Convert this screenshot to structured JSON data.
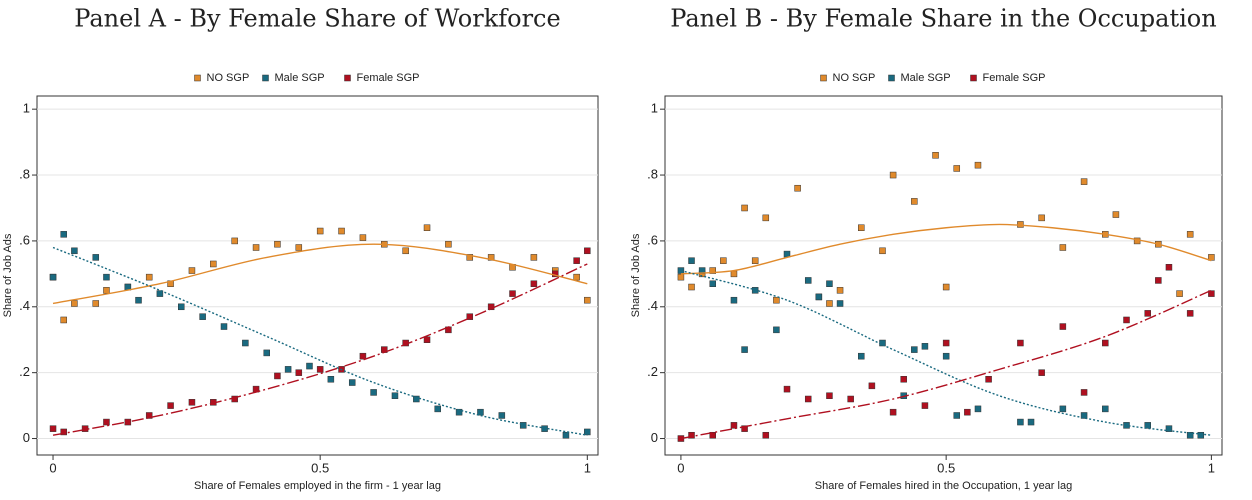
{
  "chart_data": [
    {
      "type": "scatter",
      "title": "Panel A - By Female Share of Workforce",
      "x_label": "Share of Females employed in the firm - 1 year lag",
      "y_label": "Share of Job Ads",
      "xlim": [
        -0.03,
        1.02
      ],
      "ylim": [
        -0.05,
        1.04
      ],
      "xticks": [
        0,
        0.5,
        1
      ],
      "yticks": [
        0,
        {
          "value": 0.2,
          "label": ".2"
        },
        {
          "value": 0.4,
          "label": ".4"
        },
        {
          "value": 0.6,
          "label": ".6"
        },
        {
          "value": 0.8,
          "label": ".8"
        },
        1
      ],
      "grid": true,
      "legend": "top",
      "series": [
        {
          "name": "NO SGP",
          "color": "#e08a2c",
          "x": [
            0,
            0.02,
            0.04,
            0.08,
            0.1,
            0.14,
            0.18,
            0.22,
            0.26,
            0.3,
            0.34,
            0.38,
            0.42,
            0.46,
            0.5,
            0.54,
            0.58,
            0.62,
            0.66,
            0.7,
            0.74,
            0.78,
            0.82,
            0.86,
            0.9,
            0.94,
            0.98,
            1
          ],
          "values": [
            0.49,
            0.36,
            0.41,
            0.41,
            0.45,
            0.46,
            0.49,
            0.47,
            0.51,
            0.53,
            0.6,
            0.58,
            0.59,
            0.58,
            0.63,
            0.63,
            0.61,
            0.59,
            0.57,
            0.64,
            0.59,
            0.55,
            0.55,
            0.52,
            0.55,
            0.51,
            0.49,
            0.42
          ],
          "fit": {
            "x": [
              0,
              0.2,
              0.4,
              0.6,
              0.8,
              1
            ],
            "values": [
              0.41,
              0.47,
              0.55,
              0.59,
              0.55,
              0.47
            ]
          }
        },
        {
          "name": "Male SGP",
          "color": "#1a6a80",
          "x": [
            0,
            0.02,
            0.04,
            0.08,
            0.1,
            0.14,
            0.16,
            0.2,
            0.24,
            0.28,
            0.32,
            0.36,
            0.4,
            0.44,
            0.48,
            0.52,
            0.56,
            0.6,
            0.64,
            0.68,
            0.72,
            0.76,
            0.8,
            0.84,
            0.88,
            0.92,
            0.96,
            1
          ],
          "values": [
            0.49,
            0.62,
            0.57,
            0.55,
            0.49,
            0.46,
            0.42,
            0.44,
            0.4,
            0.37,
            0.34,
            0.29,
            0.26,
            0.21,
            0.22,
            0.18,
            0.17,
            0.14,
            0.13,
            0.12,
            0.09,
            0.08,
            0.08,
            0.07,
            0.04,
            0.03,
            0.01,
            0.02
          ],
          "fit": {
            "x": [
              0,
              0.2,
              0.4,
              0.6,
              0.8,
              1
            ],
            "values": [
              0.58,
              0.45,
              0.31,
              0.17,
              0.07,
              0.01
            ]
          }
        },
        {
          "name": "Female SGP",
          "color": "#b01020",
          "x": [
            0,
            0.02,
            0.06,
            0.1,
            0.14,
            0.18,
            0.22,
            0.26,
            0.3,
            0.34,
            0.38,
            0.42,
            0.46,
            0.5,
            0.54,
            0.58,
            0.62,
            0.66,
            0.7,
            0.74,
            0.78,
            0.82,
            0.86,
            0.9,
            0.94,
            0.98,
            1
          ],
          "values": [
            0.03,
            0.02,
            0.03,
            0.05,
            0.05,
            0.07,
            0.1,
            0.11,
            0.11,
            0.12,
            0.15,
            0.19,
            0.2,
            0.21,
            0.21,
            0.25,
            0.27,
            0.29,
            0.3,
            0.33,
            0.37,
            0.4,
            0.44,
            0.47,
            0.5,
            0.54,
            0.57
          ],
          "fit": {
            "x": [
              0,
              0.2,
              0.4,
              0.6,
              0.8,
              1
            ],
            "values": [
              0.01,
              0.07,
              0.15,
              0.25,
              0.38,
              0.53
            ]
          }
        }
      ]
    },
    {
      "type": "scatter",
      "title": "Panel B - By Female Share in the Occupation",
      "x_label": "Share of Females hired in the Occupation, 1 year lag",
      "y_label": "Share of Job Ads",
      "xlim": [
        -0.03,
        1.02
      ],
      "ylim": [
        -0.05,
        1.04
      ],
      "xticks": [
        0,
        0.5,
        1
      ],
      "yticks": [
        0,
        {
          "value": 0.2,
          "label": ".2"
        },
        {
          "value": 0.4,
          "label": ".4"
        },
        {
          "value": 0.6,
          "label": ".6"
        },
        {
          "value": 0.8,
          "label": ".8"
        },
        1
      ],
      "grid": true,
      "legend": "top",
      "series": [
        {
          "name": "NO SGP",
          "color": "#e08a2c",
          "x": [
            0,
            0.02,
            0.04,
            0.06,
            0.08,
            0.1,
            0.12,
            0.14,
            0.16,
            0.18,
            0.22,
            0.26,
            0.28,
            0.3,
            0.34,
            0.38,
            0.4,
            0.44,
            0.48,
            0.5,
            0.52,
            0.56,
            0.64,
            0.68,
            0.72,
            0.76,
            0.8,
            0.82,
            0.86,
            0.9,
            0.94,
            0.96,
            1
          ],
          "values": [
            0.49,
            0.46,
            0.5,
            0.51,
            0.54,
            0.5,
            0.7,
            0.54,
            0.67,
            0.42,
            0.76,
            0.43,
            0.41,
            0.45,
            0.64,
            0.57,
            0.8,
            0.72,
            0.86,
            0.46,
            0.82,
            0.83,
            0.65,
            0.67,
            0.58,
            0.78,
            0.62,
            0.68,
            0.6,
            0.59,
            0.44,
            0.62,
            0.55
          ],
          "fit": {
            "x": [
              0,
              0.1,
              0.2,
              0.3,
              0.4,
              0.5,
              0.6,
              0.7,
              0.8,
              0.9,
              1
            ],
            "values": [
              0.5,
              0.51,
              0.55,
              0.59,
              0.62,
              0.64,
              0.65,
              0.64,
              0.62,
              0.59,
              0.54
            ]
          }
        },
        {
          "name": "Male SGP",
          "color": "#1a6a80",
          "x": [
            0,
            0.02,
            0.04,
            0.06,
            0.1,
            0.12,
            0.14,
            0.18,
            0.2,
            0.24,
            0.26,
            0.28,
            0.3,
            0.34,
            0.38,
            0.42,
            0.44,
            0.46,
            0.5,
            0.52,
            0.56,
            0.64,
            0.66,
            0.72,
            0.76,
            0.8,
            0.84,
            0.88,
            0.92,
            0.96,
            0.98
          ],
          "values": [
            0.51,
            0.54,
            0.51,
            0.47,
            0.42,
            0.27,
            0.45,
            0.33,
            0.56,
            0.48,
            0.43,
            0.47,
            0.41,
            0.25,
            0.29,
            0.13,
            0.27,
            0.28,
            0.25,
            0.07,
            0.09,
            0.05,
            0.05,
            0.09,
            0.07,
            0.09,
            0.04,
            0.04,
            0.03,
            0.01,
            0.01
          ],
          "fit": {
            "x": [
              0,
              0.2,
              0.4,
              0.6,
              0.8,
              1
            ],
            "values": [
              0.51,
              0.42,
              0.27,
              0.13,
              0.05,
              0.01
            ]
          }
        },
        {
          "name": "Female SGP",
          "color": "#b01020",
          "x": [
            0,
            0.02,
            0.06,
            0.1,
            0.12,
            0.16,
            0.2,
            0.24,
            0.28,
            0.32,
            0.36,
            0.4,
            0.42,
            0.46,
            0.5,
            0.54,
            0.58,
            0.64,
            0.68,
            0.72,
            0.76,
            0.8,
            0.84,
            0.88,
            0.9,
            0.92,
            0.96,
            1
          ],
          "values": [
            0,
            0.01,
            0.01,
            0.04,
            0.03,
            0.01,
            0.15,
            0.12,
            0.13,
            0.12,
            0.16,
            0.08,
            0.18,
            0.1,
            0.29,
            0.08,
            0.18,
            0.29,
            0.2,
            0.34,
            0.14,
            0.29,
            0.36,
            0.38,
            0.48,
            0.52,
            0.38,
            0.44
          ],
          "fit": {
            "x": [
              0,
              0.2,
              0.4,
              0.6,
              0.8,
              1
            ],
            "values": [
              0,
              0.06,
              0.12,
              0.21,
              0.31,
              0.45
            ]
          }
        }
      ]
    }
  ]
}
